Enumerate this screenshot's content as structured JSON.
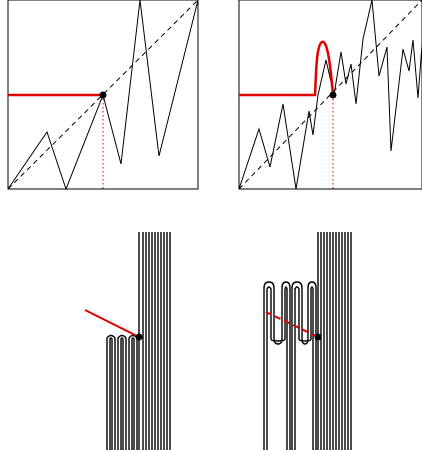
{
  "figure": {
    "panels": [
      {
        "name": "graph-single-fold",
        "kind": "zigzag-graph"
      },
      {
        "name": "graph-double-fold",
        "kind": "zigzag-graph"
      },
      {
        "name": "folding-single",
        "kind": "folded-strands"
      },
      {
        "name": "folding-double",
        "kind": "folded-strands"
      }
    ],
    "colors": {
      "ink": "#000000",
      "highlight": "#e00000",
      "background": "#ffffff"
    }
  }
}
